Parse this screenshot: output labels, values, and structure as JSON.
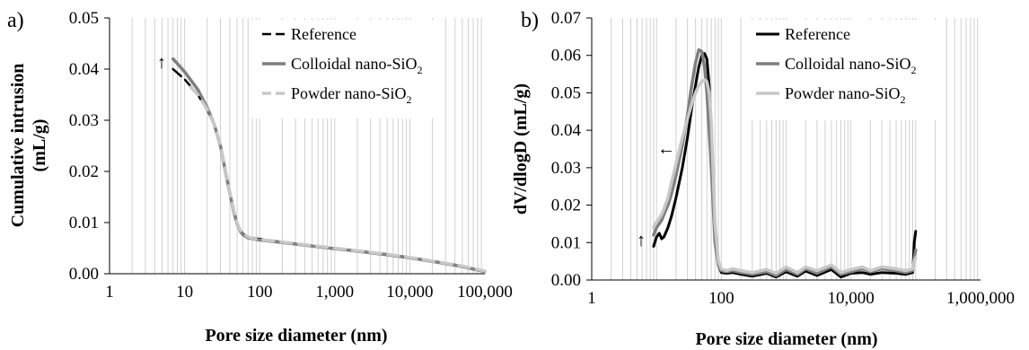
{
  "chart_data": [
    {
      "panel": "a)",
      "type": "line",
      "xscale": "log",
      "xlabel": "Pore size diameter (nm)",
      "ylabel_line1": "Cumulative intrusion",
      "ylabel_line2": "(mL/g)",
      "xlim": [
        1,
        100000
      ],
      "ylim": [
        0,
        0.05
      ],
      "xticks": [
        1,
        10,
        100,
        1000,
        10000,
        100000
      ],
      "xtick_labels": [
        "1",
        "10",
        "100",
        "1,000",
        "10,000",
        "100,000"
      ],
      "yticks": [
        0,
        0.01,
        0.02,
        0.03,
        0.04,
        0.05
      ],
      "ytick_labels": [
        "0.00",
        "0.01",
        "0.02",
        "0.03",
        "0.04",
        "0.05"
      ],
      "grid": "vertical minor",
      "legend_position": "top-right",
      "series": [
        {
          "name": "Reference",
          "sub": "",
          "color": "#000000",
          "dash": "12 6",
          "width": 2.5,
          "x": [
            7,
            10,
            15,
            20,
            25,
            30,
            35,
            40,
            45,
            50,
            55,
            60,
            70,
            80,
            100,
            200,
            500,
            1000,
            2000,
            5000,
            10000,
            20000,
            50000,
            100000
          ],
          "y": [
            0.04,
            0.038,
            0.035,
            0.032,
            0.029,
            0.025,
            0.02,
            0.016,
            0.0125,
            0.01,
            0.0085,
            0.0078,
            0.0072,
            0.007,
            0.0068,
            0.0062,
            0.0055,
            0.005,
            0.0045,
            0.0038,
            0.0032,
            0.0025,
            0.0015,
            0.0004
          ]
        },
        {
          "name": "Colloidal nano-SiO",
          "sub": "2",
          "color": "#7f7f7f",
          "dash": "",
          "width": 3.5,
          "x": [
            7,
            10,
            15,
            20,
            25,
            30,
            35,
            40,
            45,
            50,
            55,
            60,
            70,
            80,
            100,
            200,
            500,
            1000,
            2000,
            5000,
            10000,
            20000,
            50000,
            100000
          ],
          "y": [
            0.042,
            0.0395,
            0.036,
            0.0325,
            0.029,
            0.025,
            0.02,
            0.0158,
            0.0122,
            0.0098,
            0.0083,
            0.0076,
            0.007,
            0.0068,
            0.0066,
            0.0061,
            0.0054,
            0.0049,
            0.0044,
            0.0037,
            0.0031,
            0.0024,
            0.0014,
            0.0004
          ]
        },
        {
          "name": "Powder nano-SiO",
          "sub": "2",
          "color": "#c8c8c8",
          "dash": "12 8",
          "width": 3.5,
          "x": [
            12,
            15,
            20,
            25,
            30,
            35,
            40,
            45,
            50,
            55,
            60,
            70,
            80,
            100,
            200,
            500,
            1000,
            2000,
            5000,
            10000,
            20000,
            50000,
            100000
          ],
          "y": [
            0.0365,
            0.035,
            0.0322,
            0.029,
            0.0252,
            0.0203,
            0.016,
            0.0125,
            0.01,
            0.0085,
            0.0078,
            0.0072,
            0.0069,
            0.0067,
            0.0062,
            0.0055,
            0.005,
            0.0045,
            0.0038,
            0.0032,
            0.0025,
            0.0015,
            0.0005
          ]
        }
      ],
      "annotations": [
        "↑"
      ]
    },
    {
      "panel": "b)",
      "type": "line",
      "xscale": "log",
      "xlabel": "Pore size diameter (nm)",
      "ylabel": "dV/dlogD (mL/g)",
      "xlim": [
        1,
        1000000
      ],
      "ylim": [
        0,
        0.07
      ],
      "xticks": [
        1,
        100,
        10000,
        1000000
      ],
      "xtick_labels": [
        "1",
        "100",
        "10,000",
        "1,000,000"
      ],
      "yticks": [
        0,
        0.01,
        0.02,
        0.03,
        0.04,
        0.05,
        0.06,
        0.07
      ],
      "ytick_labels": [
        "0.00",
        "0.01",
        "0.02",
        "0.03",
        "0.04",
        "0.05",
        "0.06",
        "0.07"
      ],
      "grid": "vertical minor",
      "legend_position": "top-right",
      "series": [
        {
          "name": "Reference",
          "sub": "",
          "color": "#000000",
          "dash": "",
          "width": 3,
          "x": [
            9,
            10,
            11,
            12,
            13,
            15,
            17,
            20,
            25,
            30,
            35,
            40,
            45,
            50,
            55,
            60,
            65,
            70,
            80,
            90,
            100,
            120,
            150,
            200,
            300,
            500,
            700,
            1000,
            1500,
            2000,
            3000,
            5000,
            7000,
            10000,
            15000,
            20000,
            30000,
            50000,
            70000,
            90000,
            95000,
            100000
          ],
          "y": [
            0.009,
            0.0115,
            0.0125,
            0.011,
            0.0115,
            0.014,
            0.017,
            0.022,
            0.03,
            0.038,
            0.046,
            0.052,
            0.057,
            0.06,
            0.0605,
            0.059,
            0.052,
            0.04,
            0.012,
            0.004,
            0.002,
            0.0018,
            0.002,
            0.0015,
            0.001,
            0.0018,
            0.0008,
            0.0022,
            0.001,
            0.0024,
            0.0012,
            0.0028,
            0.0008,
            0.0018,
            0.002,
            0.0015,
            0.002,
            0.0018,
            0.0015,
            0.002,
            0.01,
            0.013
          ]
        },
        {
          "name": "Colloidal nano-SiO",
          "sub": "2",
          "color": "#7f7f7f",
          "dash": "",
          "width": 3.5,
          "x": [
            9,
            10,
            11,
            12,
            13,
            15,
            17,
            20,
            25,
            30,
            35,
            40,
            45,
            50,
            55,
            60,
            65,
            70,
            80,
            90,
            100,
            120,
            150,
            200,
            300,
            500,
            700,
            1000,
            1500,
            2000,
            3000,
            5000,
            7000,
            10000,
            15000,
            20000,
            30000,
            50000,
            70000,
            90000,
            95000,
            100000
          ],
          "y": [
            0.012,
            0.014,
            0.015,
            0.016,
            0.0175,
            0.02,
            0.023,
            0.028,
            0.036,
            0.044,
            0.052,
            0.058,
            0.0615,
            0.061,
            0.057,
            0.05,
            0.04,
            0.03,
            0.01,
            0.004,
            0.0025,
            0.0022,
            0.0025,
            0.002,
            0.0015,
            0.0022,
            0.0012,
            0.0028,
            0.0015,
            0.003,
            0.0018,
            0.0035,
            0.0015,
            0.0022,
            0.003,
            0.0022,
            0.003,
            0.0025,
            0.002,
            0.0025,
            0.006,
            0.008
          ]
        },
        {
          "name": "Powder nano-SiO",
          "sub": "2",
          "color": "#c8c8c8",
          "dash": "",
          "width": 3.5,
          "x": [
            9,
            10,
            11,
            12,
            13,
            15,
            17,
            20,
            25,
            30,
            35,
            40,
            45,
            50,
            55,
            60,
            65,
            70,
            80,
            90,
            100,
            120,
            150,
            200,
            300,
            500,
            700,
            1000,
            1500,
            2000,
            3000,
            5000,
            7000,
            10000,
            15000,
            20000,
            30000,
            50000,
            70000,
            90000,
            95000,
            100000
          ],
          "y": [
            0.014,
            0.0155,
            0.0165,
            0.0175,
            0.019,
            0.022,
            0.026,
            0.031,
            0.038,
            0.043,
            0.047,
            0.05,
            0.052,
            0.053,
            0.0535,
            0.053,
            0.05,
            0.042,
            0.015,
            0.005,
            0.003,
            0.0025,
            0.003,
            0.0025,
            0.002,
            0.0028,
            0.0018,
            0.0035,
            0.002,
            0.0035,
            0.0025,
            0.004,
            0.002,
            0.0028,
            0.0035,
            0.0025,
            0.0035,
            0.003,
            0.0025,
            0.003,
            0.005,
            0.006
          ]
        }
      ],
      "annotations": [
        "↑",
        "←"
      ]
    }
  ]
}
